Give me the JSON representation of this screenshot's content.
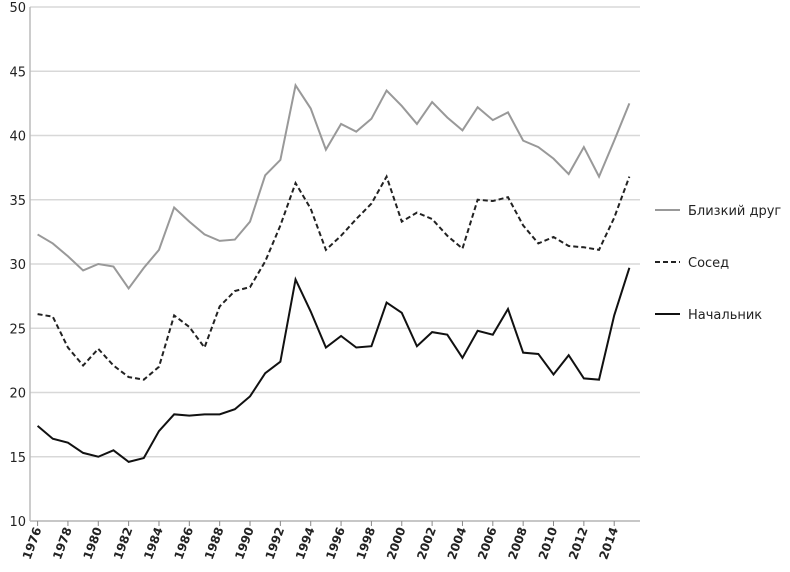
{
  "chart_data": {
    "type": "line",
    "x": [
      1976,
      1977,
      1978,
      1979,
      1980,
      1981,
      1982,
      1983,
      1984,
      1985,
      1986,
      1987,
      1988,
      1989,
      1990,
      1991,
      1992,
      1993,
      1994,
      1995,
      1996,
      1997,
      1998,
      1999,
      2000,
      2001,
      2002,
      2003,
      2004,
      2005,
      2006,
      2007,
      2008,
      2009,
      2010,
      2011,
      2012,
      2013,
      2014,
      2015
    ],
    "series": [
      {
        "name": "Близкий друг",
        "color": "#999999",
        "style": "solid",
        "values": [
          32.3,
          31.6,
          30.6,
          29.5,
          30.0,
          29.8,
          28.1,
          29.7,
          31.1,
          34.4,
          33.3,
          32.3,
          31.8,
          31.9,
          33.3,
          36.9,
          38.1,
          43.9,
          42.1,
          38.9,
          40.9,
          40.3,
          41.3,
          43.5,
          42.3,
          40.9,
          42.6,
          41.4,
          40.4,
          42.2,
          41.2,
          41.8,
          39.6,
          39.1,
          38.2,
          37.0,
          39.1,
          36.8,
          39.6,
          42.5
        ]
      },
      {
        "name": "Сосед",
        "color": "#222222",
        "style": "dashed",
        "values": [
          26.1,
          25.9,
          23.5,
          22.1,
          23.4,
          22.1,
          21.2,
          21.0,
          22.0,
          26.0,
          25.1,
          23.5,
          26.7,
          27.9,
          28.2,
          30.2,
          33.0,
          36.3,
          34.3,
          31.1,
          32.2,
          33.5,
          34.7,
          36.8,
          33.3,
          34.0,
          33.5,
          32.2,
          31.2,
          35.0,
          34.9,
          35.2,
          33.0,
          31.6,
          32.1,
          31.4,
          31.3,
          31.1,
          33.6,
          36.8
        ]
      },
      {
        "name": "Начальник",
        "color": "#111111",
        "style": "solid",
        "values": [
          17.4,
          16.4,
          16.1,
          15.3,
          15.0,
          15.5,
          14.6,
          14.9,
          17.0,
          18.3,
          18.2,
          18.3,
          18.3,
          18.7,
          19.7,
          21.5,
          22.4,
          28.8,
          26.3,
          23.5,
          24.4,
          23.5,
          23.6,
          27.0,
          26.2,
          23.6,
          24.7,
          24.5,
          22.7,
          24.8,
          24.5,
          26.5,
          23.1,
          23.0,
          21.4,
          22.9,
          21.1,
          21.0,
          26.0,
          29.7
        ]
      }
    ],
    "xlim": [
      1975.5,
      2015.7
    ],
    "xticks": [
      1976,
      1978,
      1980,
      1982,
      1984,
      1986,
      1988,
      1990,
      1992,
      1994,
      1996,
      1998,
      2000,
      2002,
      2004,
      2006,
      2008,
      2010,
      2012,
      2014
    ],
    "ylim": [
      10,
      50
    ],
    "yticks": [
      10,
      15,
      20,
      25,
      30,
      35,
      40,
      45,
      50
    ],
    "grid": true,
    "legend": "right"
  }
}
